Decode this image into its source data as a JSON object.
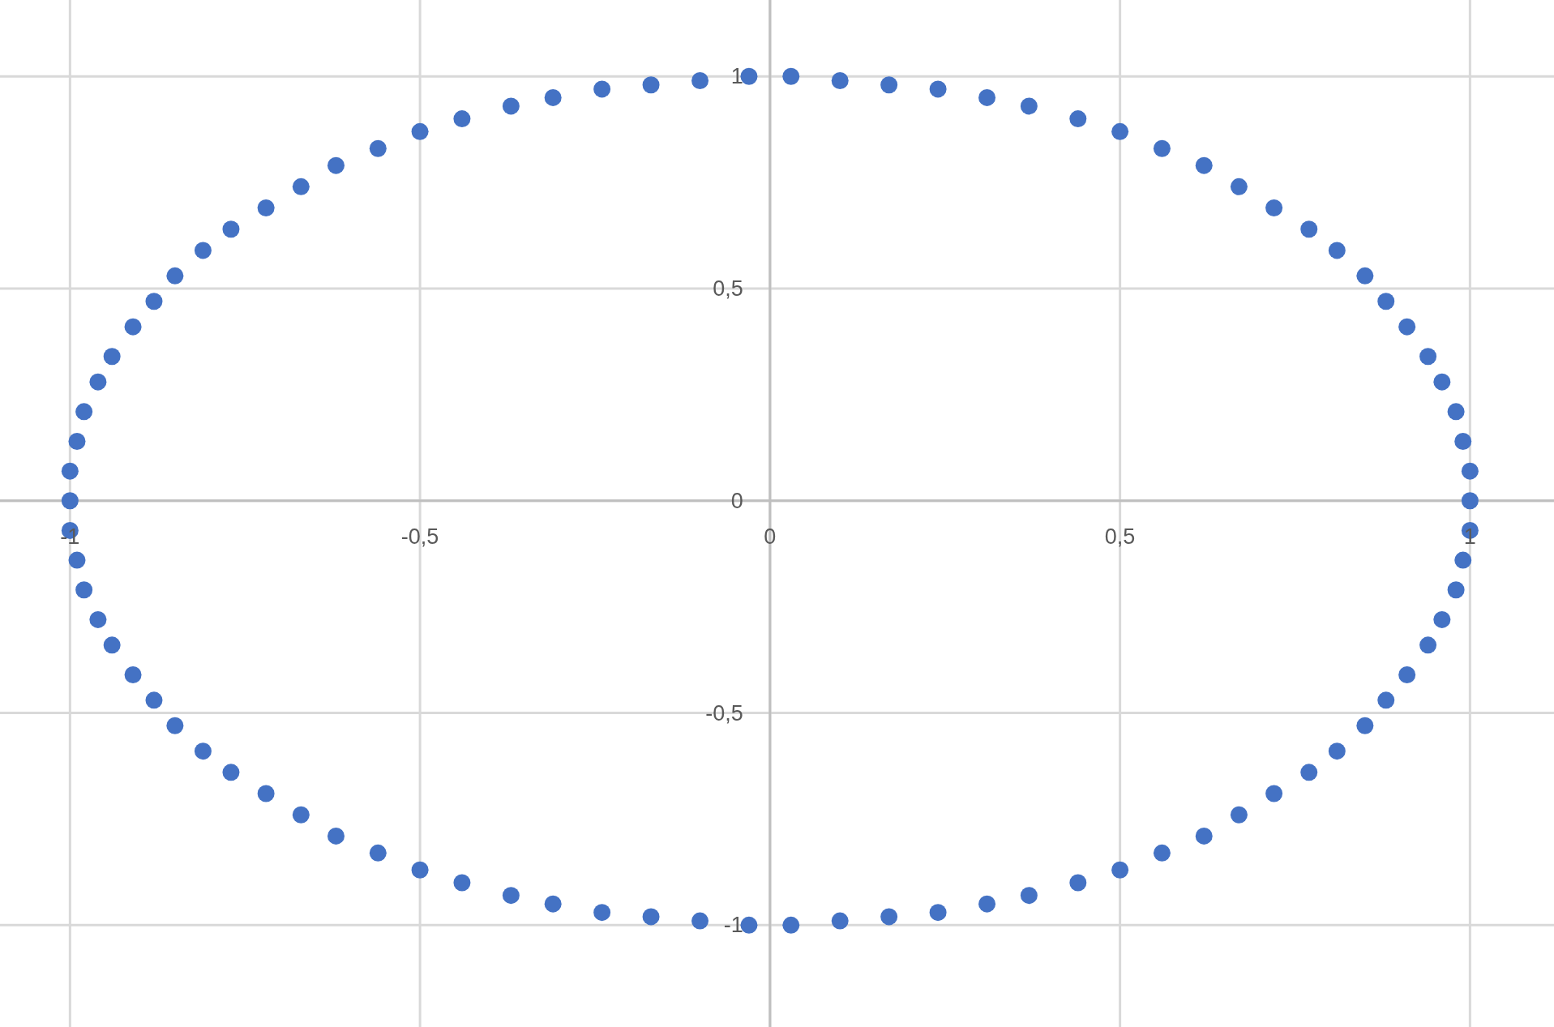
{
  "chart_data": {
    "type": "scatter",
    "color": "#4472c4",
    "marker": "circle",
    "grid": true,
    "xlim": [
      -1.1,
      1.12
    ],
    "ylim": [
      -1.24,
      1.18
    ],
    "xticks": [
      -1,
      {
        "value": -0.5,
        "label": "-0,5"
      },
      0,
      {
        "value": 0.5,
        "label": "0,5"
      },
      1
    ],
    "yticks": [
      -1,
      {
        "value": -0.5,
        "label": "-0,5"
      },
      0,
      {
        "value": 0.5,
        "label": "0,5"
      },
      1
    ],
    "x": [
      1,
      1,
      0.99,
      0.98,
      0.96,
      0.94,
      0.91,
      0.88,
      0.85,
      0.81,
      0.77,
      0.72,
      0.67,
      0.62,
      0.56,
      0.5,
      0.44,
      0.37,
      0.31,
      0.24,
      0.17,
      0.1,
      0.03,
      -0.03,
      -0.1,
      -0.17,
      -0.24,
      -0.31,
      -0.37,
      -0.44,
      -0.5,
      -0.56,
      -0.62,
      -0.67,
      -0.72,
      -0.77,
      -0.81,
      -0.85,
      -0.88,
      -0.91,
      -0.94,
      -0.96,
      -0.98,
      -0.99,
      -1,
      -1,
      -1,
      -0.99,
      -0.98,
      -0.96,
      -0.94,
      -0.91,
      -0.88,
      -0.85,
      -0.81,
      -0.77,
      -0.72,
      -0.67,
      -0.62,
      -0.56,
      -0.5,
      -0.44,
      -0.37,
      -0.31,
      -0.24,
      -0.17,
      -0.1,
      -0.03,
      0.03,
      0.1,
      0.17,
      0.24,
      0.31,
      0.37,
      0.44,
      0.5,
      0.56,
      0.62,
      0.67,
      0.72,
      0.77,
      0.81,
      0.85,
      0.88,
      0.91,
      0.94,
      0.96,
      0.98,
      0.99,
      1
    ],
    "values": [
      0,
      0.07,
      0.14,
      0.21,
      0.28,
      0.34,
      0.41,
      0.47,
      0.53,
      0.59,
      0.64,
      0.69,
      0.74,
      0.79,
      0.83,
      0.87,
      0.9,
      0.93,
      0.95,
      0.97,
      0.98,
      0.99,
      1,
      1,
      0.99,
      0.98,
      0.97,
      0.95,
      0.93,
      0.9,
      0.87,
      0.83,
      0.79,
      0.74,
      0.69,
      0.64,
      0.59,
      0.53,
      0.47,
      0.41,
      0.34,
      0.28,
      0.21,
      0.14,
      0.07,
      0,
      -0.07,
      -0.14,
      -0.21,
      -0.28,
      -0.34,
      -0.41,
      -0.47,
      -0.53,
      -0.59,
      -0.64,
      -0.69,
      -0.74,
      -0.79,
      -0.83,
      -0.87,
      -0.9,
      -0.93,
      -0.95,
      -0.97,
      -0.98,
      -0.99,
      -1,
      -1,
      -0.99,
      -0.98,
      -0.97,
      -0.95,
      -0.93,
      -0.9,
      -0.87,
      -0.83,
      -0.79,
      -0.74,
      -0.69,
      -0.64,
      -0.59,
      -0.53,
      -0.47,
      -0.41,
      -0.34,
      -0.28,
      -0.21,
      -0.14,
      -0.07
    ]
  }
}
